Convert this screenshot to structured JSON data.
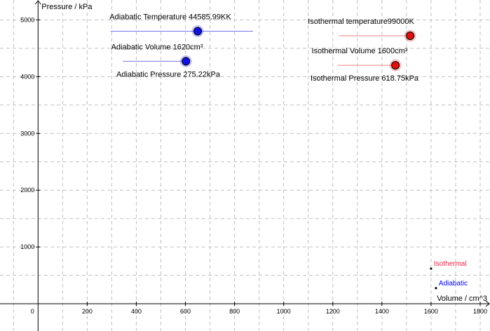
{
  "axes": {
    "x_label": "Volume / cm^3",
    "y_label": "Pressure / kPa",
    "x_ticks": [
      0,
      200,
      400,
      600,
      800,
      1000,
      1200,
      1400,
      1600,
      1800
    ],
    "y_ticks": [
      1000,
      2000,
      3000,
      4000,
      5000
    ],
    "x_grid_step": 100,
    "y_grid_step": 500,
    "x_range": [
      -155,
      1840
    ],
    "y_range": [
      -480,
      5350
    ],
    "grid": true
  },
  "colors": {
    "adiabatic": "#1010e0",
    "isothermal": "#e01010",
    "adiabatic_label": "#0000ff",
    "isothermal_label": "#ee2244"
  },
  "sliders": [
    {
      "id": "adiabatic-temperature",
      "label": "Adiabatic Temperature 44585.99KK",
      "family": "adiabatic",
      "track_x": [
        295,
        875
      ],
      "y": 4800,
      "knob_x": 650,
      "label_position": "above"
    },
    {
      "id": "adiabatic-volume",
      "label": "Adiabatic Volume 1620cm³",
      "family": "adiabatic",
      "track_x": [
        345,
        602
      ],
      "y": 4270,
      "knob_x": 602,
      "label_position": "above"
    },
    {
      "id": "adiabatic-pressure",
      "label": "Adiabatic Pressure 275.22kPa",
      "family": "adiabatic",
      "y": 4270,
      "label_position": "below"
    },
    {
      "id": "isothermal-temperature",
      "label": "Isothermal temperature99000K",
      "family": "isothermal",
      "track_x": [
        1225,
        1515
      ],
      "y": 4720,
      "knob_x": 1515,
      "label_position": "above"
    },
    {
      "id": "isothermal-volume",
      "label": "Isothermal Volume 1600cm³",
      "family": "isothermal",
      "track_x": [
        1220,
        1455
      ],
      "y": 4200,
      "knob_x": 1455,
      "label_position": "above"
    },
    {
      "id": "isothermal-pressure",
      "label": "Isothermal Pressure 618.75kPa",
      "family": "isothermal",
      "y": 4200,
      "label_position": "below"
    }
  ],
  "points": [
    {
      "name": "Isothermal",
      "x": 1600,
      "y": 618.75,
      "family": "isothermal"
    },
    {
      "name": "Adiabatic",
      "x": 1620,
      "y": 275.22,
      "family": "adiabatic"
    }
  ]
}
